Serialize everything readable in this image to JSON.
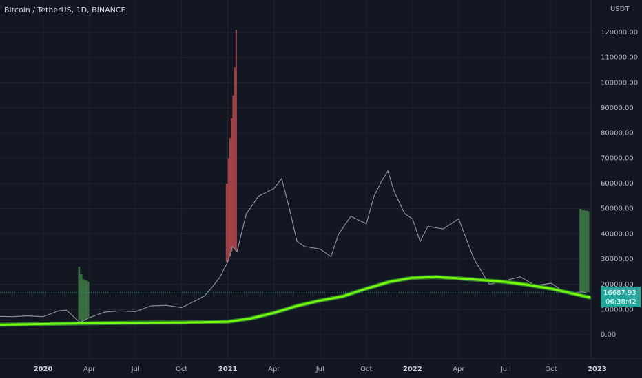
{
  "chart_data": {
    "type": "line",
    "title": "Bitcoin / TetherUS, 1D, BINANCE",
    "y_axis_label": "USDT",
    "last_price_label": "16687.93",
    "countdown": "06:38:42",
    "last_price": 16687.93,
    "last_price_color": "#26a69a",
    "xlim": [
      -2.8,
      35.6
    ],
    "ylim": [
      -9500,
      132800
    ],
    "grid": true,
    "xticks": [
      {
        "value": 0,
        "label": "2020"
      },
      {
        "value": 3,
        "label": "Apr"
      },
      {
        "value": 6,
        "label": "Jul"
      },
      {
        "value": 9,
        "label": "Oct"
      },
      {
        "value": 12,
        "label": "2021"
      },
      {
        "value": 15,
        "label": "Apr"
      },
      {
        "value": 18,
        "label": "Jul"
      },
      {
        "value": 21,
        "label": "Oct"
      },
      {
        "value": 24,
        "label": "2022"
      },
      {
        "value": 27,
        "label": "Apr"
      },
      {
        "value": 30,
        "label": "Jul"
      },
      {
        "value": 33,
        "label": "Oct"
      },
      {
        "value": 36,
        "label": "2023"
      }
    ],
    "yticks": [
      {
        "value": 0,
        "label": "0.00"
      },
      {
        "value": 10000,
        "label": "10000.00"
      },
      {
        "value": 20000,
        "label": "20000.00"
      },
      {
        "value": 30000,
        "label": "30000.00"
      },
      {
        "value": 40000,
        "label": "40000.00"
      },
      {
        "value": 50000,
        "label": "50000.00"
      },
      {
        "value": 60000,
        "label": "60000.00"
      },
      {
        "value": 70000,
        "label": "70000.00"
      },
      {
        "value": 80000,
        "label": "80000.00"
      },
      {
        "value": 90000,
        "label": "90000.00"
      },
      {
        "value": 100000,
        "label": "100000.00"
      },
      {
        "value": 110000,
        "label": "110000.00"
      },
      {
        "value": 120000,
        "label": "120000.00"
      }
    ],
    "series": [
      {
        "color": "#8a8e97",
        "x": [
          -2.8,
          -2,
          -1,
          0,
          1,
          1.5,
          2.4,
          3,
          4,
          5,
          6,
          7,
          8,
          9,
          10,
          10.5,
          11,
          11.5,
          12,
          12.3,
          12.6,
          13.2,
          14,
          15,
          15.5,
          16,
          16.5,
          17,
          18,
          18.7,
          19.2,
          20,
          21,
          21.5,
          22,
          22.4,
          22.8,
          23.5,
          24,
          24.5,
          25,
          26,
          27,
          27.5,
          28,
          29,
          30,
          31,
          32,
          33,
          34,
          35,
          35.3
        ],
        "values": [
          7300,
          7200,
          7500,
          7200,
          9500,
          9800,
          5000,
          6800,
          9000,
          9500,
          9200,
          11500,
          11700,
          10800,
          13800,
          15500,
          19000,
          23000,
          29000,
          35000,
          33000,
          48000,
          55000,
          58000,
          62000,
          50000,
          37000,
          35000,
          34000,
          31000,
          40000,
          47000,
          44000,
          55000,
          61000,
          65000,
          57000,
          48000,
          46000,
          37000,
          43000,
          42000,
          46000,
          38000,
          30000,
          20000,
          21500,
          23000,
          19500,
          20500,
          16500,
          17000,
          16688
        ]
      },
      {
        "color": "#76ff03",
        "x": [
          -2.8,
          0,
          3,
          6,
          9,
          12,
          13.5,
          15,
          16.5,
          18,
          19.5,
          21,
          22.5,
          24,
          25.5,
          27,
          28.5,
          30,
          31.5,
          33,
          34.3,
          35.6
        ],
        "values": [
          4000,
          4300,
          4600,
          4800,
          4900,
          5200,
          6500,
          8700,
          11500,
          13600,
          15300,
          18300,
          21000,
          22600,
          22900,
          22400,
          21700,
          21000,
          19800,
          18300,
          16500,
          14700
        ]
      }
    ],
    "bands": [
      {
        "color": "#b5484b",
        "x": [
          11.87,
          12.0,
          12.1,
          12.2,
          12.3,
          12.4,
          12.5
        ],
        "upper": [
          60000,
          70000,
          78000,
          86000,
          95000,
          106000,
          121000
        ],
        "lower": [
          29000,
          30000,
          31000,
          33000,
          35000,
          34000,
          33000
        ]
      },
      {
        "color": "#3f7a45",
        "x": [
          2.28,
          2.4,
          2.55,
          2.7,
          2.9
        ],
        "upper": [
          27000,
          24000,
          22000,
          21500,
          21000
        ],
        "lower": [
          6000,
          5000,
          5600,
          6200,
          6800
        ]
      },
      {
        "color": "#3f7a45",
        "x": [
          34.85,
          35.0,
          35.2,
          35.4
        ],
        "upper": [
          50000,
          49500,
          49200,
          49000
        ],
        "lower": [
          16800,
          16900,
          17000,
          16900
        ]
      }
    ]
  }
}
